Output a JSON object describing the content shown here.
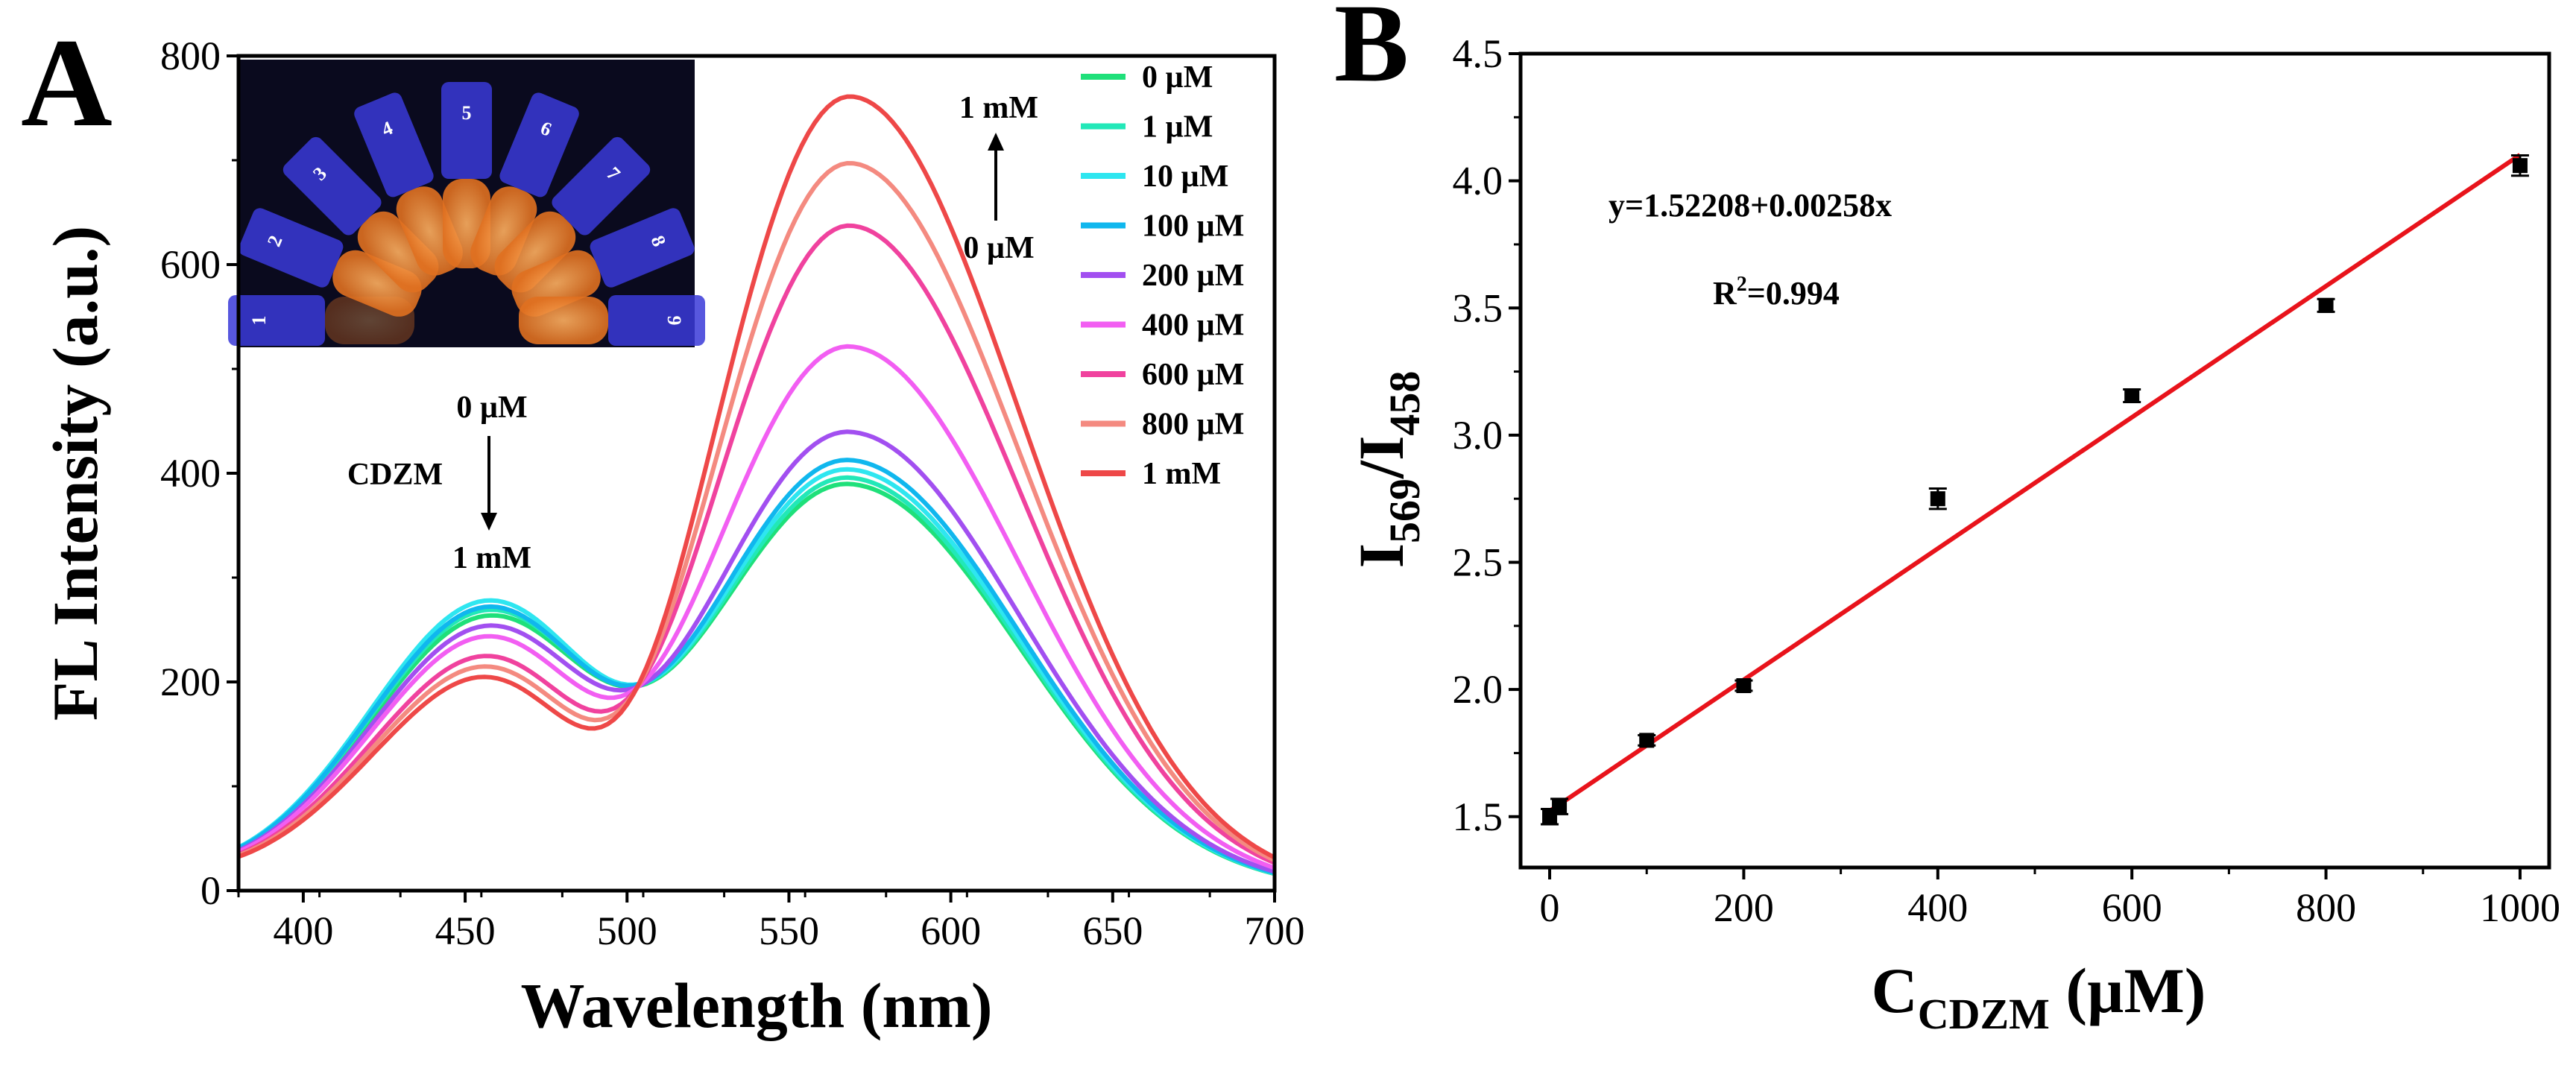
{
  "chart_data": [
    {
      "panel": "A",
      "type": "line",
      "xlabel": "Wavelength (nm)",
      "ylabel": "FL Intensity (a.u.)",
      "xlim": [
        380,
        700
      ],
      "ylim": [
        0,
        800
      ],
      "xticks": [
        400,
        450,
        500,
        550,
        600,
        650,
        700
      ],
      "yticks": [
        0,
        200,
        400,
        600,
        800
      ],
      "grid": false,
      "legend_position": "top-right",
      "annotations": {
        "peak1_top": "0 µM",
        "peak1_side": "CDZM",
        "peak1_bottom": "1 mM",
        "peak2_top": "1 mM",
        "peak2_bottom": "0 µM"
      },
      "inset": {
        "tube_labels": [
          "1",
          "2",
          "3",
          "4",
          "5",
          "6",
          "7",
          "8",
          "9"
        ]
      },
      "series": [
        {
          "name": "0 µM",
          "color": "#1fe07a",
          "peak1": 270,
          "valley": 195,
          "peak2": 390
        },
        {
          "name": "1 µM",
          "color": "#22e8b8",
          "peak1": 276,
          "valley": 196,
          "peak2": 396
        },
        {
          "name": "10 µM",
          "color": "#2ee6f0",
          "peak1": 286,
          "valley": 197,
          "peak2": 404
        },
        {
          "name": "100 µM",
          "color": "#10b7ee",
          "peak1": 280,
          "valley": 196,
          "peak2": 413
        },
        {
          "name": "200 µM",
          "color": "#a24ff0",
          "peak1": 262,
          "valley": 192,
          "peak2": 440
        },
        {
          "name": "400 µM",
          "color": "#f25ef2",
          "peak1": 255,
          "valley": 188,
          "peak2": 522
        },
        {
          "name": "600 µM",
          "color": "#f0429e",
          "peak1": 240,
          "valley": 183,
          "peak2": 638
        },
        {
          "name": "800 µM",
          "color": "#f48a80",
          "peak1": 232,
          "valley": 180,
          "peak2": 698
        },
        {
          "name": "1 mM",
          "color": "#ee4848",
          "peak1": 224,
          "valley": 178,
          "peak2": 762
        }
      ]
    },
    {
      "panel": "B",
      "type": "scatter",
      "xlabel_main": "C",
      "xlabel_sub": "CDZM",
      "xlabel_unit": " (µM)",
      "ylabel_i1": "I",
      "ylabel_sub1": "569",
      "ylabel_sep": "/I",
      "ylabel_sub2": "458",
      "xlim": [
        -30,
        1030
      ],
      "ylim": [
        1.3,
        4.5
      ],
      "xticks": [
        0,
        200,
        400,
        600,
        800,
        1000
      ],
      "yticks": [
        "1.5",
        "2.0",
        "2.5",
        "3.0",
        "3.5",
        "4.0",
        "4.5"
      ],
      "grid": false,
      "equation": "y=1.52208+0.00258x",
      "r2_prefix": "R",
      "r2_sup": "2",
      "r2_value": "=0.994",
      "fit": {
        "intercept": 1.52208,
        "slope": 0.00258,
        "color": "#e8131b"
      },
      "points": [
        {
          "x": 0,
          "y": 1.5,
          "err": 0.03
        },
        {
          "x": 10,
          "y": 1.54,
          "err": 0.03
        },
        {
          "x": 100,
          "y": 1.8,
          "err": 0.02
        },
        {
          "x": 200,
          "y": 2.015,
          "err": 0.02
        },
        {
          "x": 400,
          "y": 2.75,
          "err": 0.04
        },
        {
          "x": 600,
          "y": 3.155,
          "err": 0.025
        },
        {
          "x": 800,
          "y": 3.51,
          "err": 0.025
        },
        {
          "x": 1000,
          "y": 4.06,
          "err": 0.04
        }
      ]
    }
  ],
  "panel_labels": {
    "a": "A",
    "b": "B"
  }
}
